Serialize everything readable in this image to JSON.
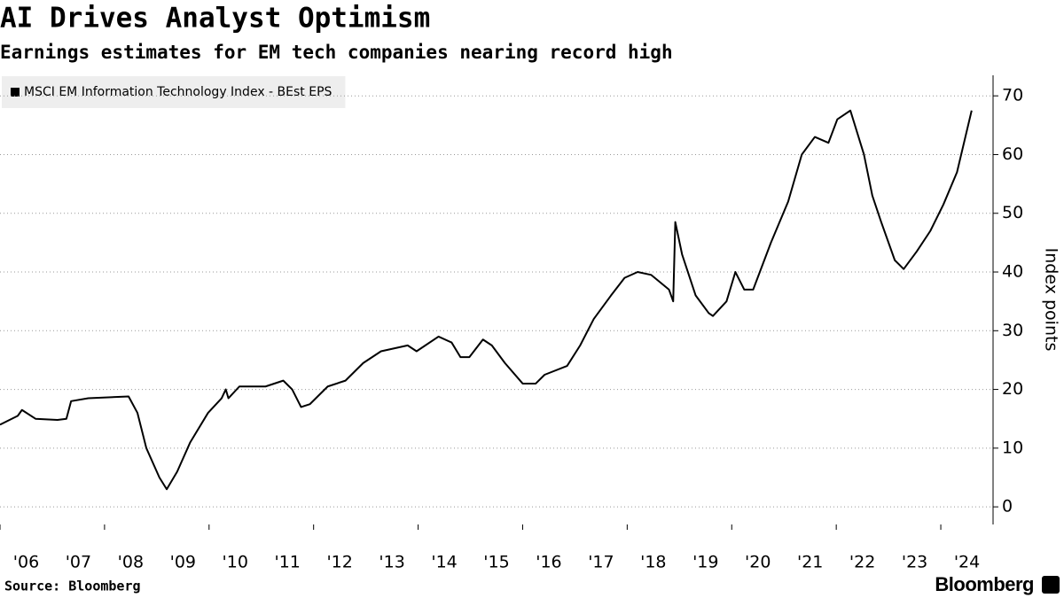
{
  "chart_data": {
    "type": "line",
    "title": "AI Drives Analyst Optimism",
    "subtitle": "Earnings estimates for EM tech companies nearing record high",
    "y_label": "Index points",
    "source": "Source: Bloomberg",
    "brand": "Bloomberg",
    "series": [
      {
        "name": "MSCI EM Information Technology Index - BEst EPS",
        "color": "#000000",
        "x": [
          2006,
          2006.34,
          2006.42,
          2006.68,
          2007.1,
          2007.27,
          2007.36,
          2007.69,
          2008.46,
          2008.63,
          2008.8,
          2009.05,
          2009.19,
          2009.39,
          2009.64,
          2009.98,
          2010.24,
          2010.32,
          2010.37,
          2010.58,
          2011.08,
          2011.42,
          2011.59,
          2011.76,
          2011.93,
          2012.27,
          2012.61,
          2012.95,
          2013.29,
          2013.8,
          2013.97,
          2014.39,
          2014.64,
          2014.81,
          2014.98,
          2015.24,
          2015.41,
          2015.66,
          2016,
          2016.25,
          2016.42,
          2016.85,
          2017.1,
          2017.36,
          2017.69,
          2017.95,
          2018.2,
          2018.46,
          2018.8,
          2018.88,
          2018.92,
          2019.05,
          2019.31,
          2019.56,
          2019.64,
          2019.9,
          2020.07,
          2020.24,
          2020.41,
          2020.75,
          2021.08,
          2021.34,
          2021.59,
          2021.85,
          2022.02,
          2022.27,
          2022.53,
          2022.69,
          2022.86,
          2023.12,
          2023.29,
          2023.54,
          2023.8,
          2024.05,
          2024.31,
          2024.59
        ],
        "values": [
          14,
          15.5,
          16.5,
          15,
          14.8,
          15,
          18,
          18.5,
          18.8,
          16,
          10,
          5,
          3,
          6,
          11,
          16,
          18.5,
          20,
          18.5,
          20.5,
          20.5,
          21.5,
          20,
          17,
          17.5,
          20.5,
          21.5,
          24.5,
          26.5,
          27.5,
          26.5,
          29,
          28,
          25.5,
          25.5,
          28.5,
          27.5,
          24.5,
          21,
          21,
          22.5,
          24,
          27.5,
          32,
          36,
          39,
          40,
          39.5,
          37,
          35,
          48.5,
          43,
          36,
          33,
          32.5,
          35,
          40,
          37,
          37,
          45,
          52,
          60,
          63,
          62,
          66,
          67.5,
          60,
          53,
          48.5,
          42,
          40.5,
          43.5,
          47,
          51.5,
          57,
          67.5
        ]
      }
    ],
    "xlim": [
      2006,
      2025
    ],
    "xticks": [
      {
        "value": 2006,
        "label": "'06"
      },
      {
        "value": 2007,
        "label": "'07"
      },
      {
        "value": 2008,
        "label": "'08"
      },
      {
        "value": 2009,
        "label": "'09"
      },
      {
        "value": 2010,
        "label": "'10"
      },
      {
        "value": 2011,
        "label": "'11"
      },
      {
        "value": 2012,
        "label": "'12"
      },
      {
        "value": 2013,
        "label": "'13"
      },
      {
        "value": 2014,
        "label": "'14"
      },
      {
        "value": 2015,
        "label": "'15"
      },
      {
        "value": 2016,
        "label": "'16"
      },
      {
        "value": 2017,
        "label": "'17"
      },
      {
        "value": 2018,
        "label": "'18"
      },
      {
        "value": 2019,
        "label": "'19"
      },
      {
        "value": 2020,
        "label": "'20"
      },
      {
        "value": 2021,
        "label": "'21"
      },
      {
        "value": 2022,
        "label": "'22"
      },
      {
        "value": 2023,
        "label": "'23"
      },
      {
        "value": 2024,
        "label": "'24"
      }
    ],
    "ylim": [
      -3,
      73.5
    ],
    "yticks": [
      0,
      10,
      20,
      30,
      40,
      50,
      60,
      70
    ],
    "grid": true,
    "legend": "top-left"
  }
}
